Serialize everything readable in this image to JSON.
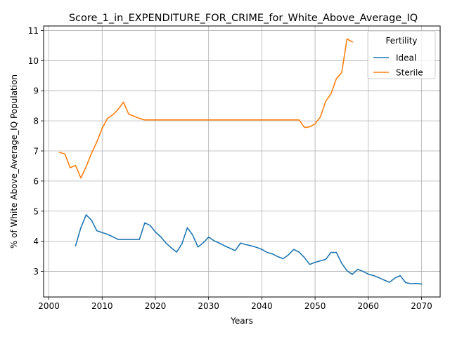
{
  "chart_data": {
    "type": "line",
    "title": "Score_1_in_EXPENDITURE_FOR_CRIME_for_White_Above_Average_IQ",
    "xlabel": "Years",
    "ylabel": "% of White Above_Average_IQ Population",
    "xlim": [
      1999,
      2073.5
    ],
    "ylim": [
      2.15,
      11.15
    ],
    "x_ticks": [
      2000,
      2010,
      2020,
      2030,
      2040,
      2050,
      2060,
      2070
    ],
    "y_ticks": [
      3,
      4,
      5,
      6,
      7,
      8,
      9,
      10,
      11
    ],
    "grid": true,
    "legend": {
      "title": "Fertility",
      "placement": "top-right"
    },
    "series": [
      {
        "name": "Ideal",
        "color": "#1f77b4",
        "x": [
          2005,
          2006,
          2007,
          2008,
          2009,
          2010,
          2011,
          2012,
          2013,
          2014,
          2015,
          2016,
          2017,
          2018,
          2019,
          2020,
          2021,
          2022,
          2023,
          2024,
          2025,
          2026,
          2027,
          2028,
          2029,
          2030,
          2031,
          2032,
          2033,
          2034,
          2035,
          2036,
          2037,
          2038,
          2039,
          2040,
          2041,
          2042,
          2043,
          2044,
          2045,
          2046,
          2047,
          2048,
          2049,
          2050,
          2051,
          2052,
          2053,
          2054,
          2055,
          2056,
          2057,
          2058,
          2059,
          2060,
          2061,
          2062,
          2063,
          2064,
          2065,
          2066,
          2067,
          2068,
          2069,
          2070
        ],
        "values": [
          3.85,
          4.45,
          4.88,
          4.7,
          4.35,
          4.29,
          4.23,
          4.15,
          4.06,
          4.06,
          4.06,
          4.06,
          4.06,
          4.61,
          4.53,
          4.31,
          4.15,
          3.94,
          3.78,
          3.64,
          3.92,
          4.45,
          4.21,
          3.81,
          3.95,
          4.14,
          4.02,
          3.94,
          3.85,
          3.77,
          3.69,
          3.94,
          3.89,
          3.85,
          3.8,
          3.73,
          3.63,
          3.58,
          3.49,
          3.42,
          3.55,
          3.73,
          3.64,
          3.46,
          3.23,
          3.3,
          3.35,
          3.4,
          3.63,
          3.63,
          3.27,
          3.02,
          2.9,
          3.07,
          3.0,
          2.91,
          2.86,
          2.79,
          2.71,
          2.64,
          2.78,
          2.86,
          2.63,
          2.59,
          2.6,
          2.58
        ]
      },
      {
        "name": "Sterile",
        "color": "#ff7f0e",
        "x": [
          2002,
          2003,
          2004,
          2005,
          2006,
          2007,
          2008,
          2009,
          2010,
          2011,
          2012,
          2013,
          2014,
          2015,
          2016,
          2017,
          2018,
          2019,
          2020,
          2021,
          2022,
          2023,
          2024,
          2025,
          2026,
          2027,
          2028,
          2029,
          2030,
          2031,
          2032,
          2033,
          2034,
          2035,
          2036,
          2037,
          2038,
          2039,
          2040,
          2041,
          2042,
          2043,
          2044,
          2045,
          2046,
          2047,
          2048,
          2049,
          2050,
          2051,
          2052,
          2053,
          2054,
          2055,
          2056,
          2057
        ],
        "values": [
          6.95,
          6.9,
          6.44,
          6.52,
          6.1,
          6.48,
          6.92,
          7.3,
          7.75,
          8.08,
          8.2,
          8.38,
          8.62,
          8.22,
          8.15,
          8.08,
          8.03,
          8.03,
          8.03,
          8.03,
          8.03,
          8.03,
          8.03,
          8.03,
          8.03,
          8.03,
          8.03,
          8.03,
          8.03,
          8.03,
          8.03,
          8.03,
          8.03,
          8.03,
          8.03,
          8.03,
          8.03,
          8.03,
          8.03,
          8.03,
          8.03,
          8.03,
          8.03,
          8.03,
          8.03,
          8.03,
          7.78,
          7.8,
          7.9,
          8.13,
          8.65,
          8.9,
          9.4,
          9.6,
          10.72,
          10.62
        ]
      }
    ]
  }
}
